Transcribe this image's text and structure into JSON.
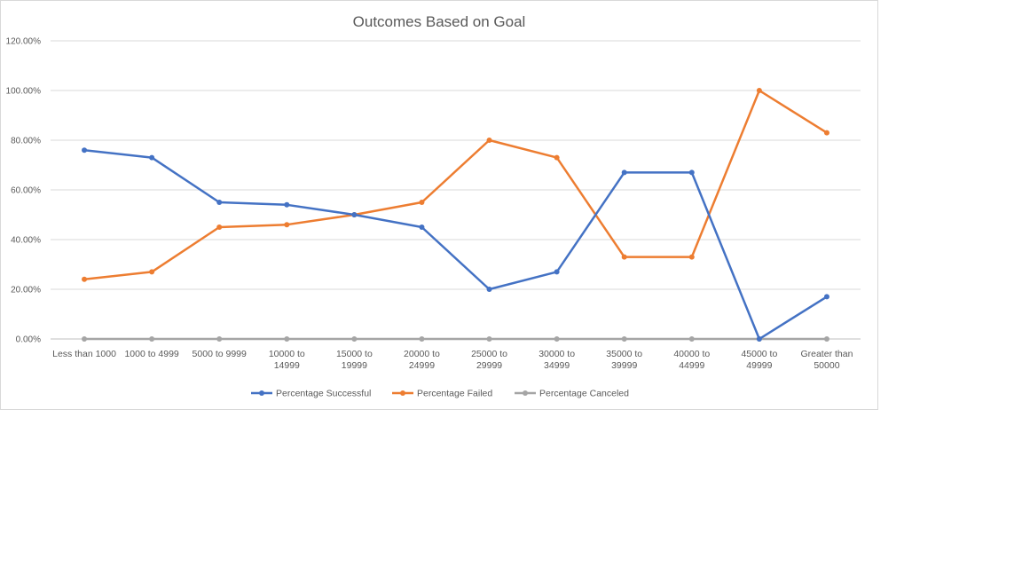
{
  "chart_data": {
    "type": "line",
    "title": "Outcomes Based on Goal",
    "xlabel": "",
    "ylabel": "",
    "ylim": [
      0,
      1.2
    ],
    "y_ticks": [
      0,
      0.2,
      0.4,
      0.6,
      0.8,
      1.0,
      1.2
    ],
    "y_tick_labels": [
      "0.00%",
      "20.00%",
      "40.00%",
      "60.00%",
      "80.00%",
      "100.00%",
      "120.00%"
    ],
    "grid": true,
    "legend_position": "bottom",
    "categories": [
      "Less than 1000",
      "1000 to 4999",
      "5000 to 9999",
      "10000 to 14999",
      "15000 to 19999",
      "20000 to 24999",
      "25000 to 29999",
      "30000 to 34999",
      "35000 to 39999",
      "40000 to 44999",
      "45000 to 49999",
      "Greater than 50000"
    ],
    "category_label_lines": [
      [
        "Less than 1000"
      ],
      [
        "1000 to 4999"
      ],
      [
        "5000 to 9999"
      ],
      [
        "10000 to",
        "14999"
      ],
      [
        "15000 to",
        "19999"
      ],
      [
        "20000 to",
        "24999"
      ],
      [
        "25000 to",
        "29999"
      ],
      [
        "30000 to",
        "34999"
      ],
      [
        "35000 to",
        "39999"
      ],
      [
        "40000 to",
        "44999"
      ],
      [
        "45000 to",
        "49999"
      ],
      [
        "Greater than",
        "50000"
      ]
    ],
    "series": [
      {
        "name": "Percentage Successful",
        "color": "#4472c4",
        "values": [
          0.76,
          0.73,
          0.55,
          0.54,
          0.5,
          0.45,
          0.2,
          0.27,
          0.67,
          0.67,
          0.0,
          0.17
        ]
      },
      {
        "name": "Percentage Failed",
        "color": "#ed7d31",
        "values": [
          0.24,
          0.27,
          0.45,
          0.46,
          0.5,
          0.55,
          0.8,
          0.73,
          0.33,
          0.33,
          1.0,
          0.83
        ]
      },
      {
        "name": "Percentage Canceled",
        "color": "#a5a5a5",
        "values": [
          0,
          0,
          0,
          0,
          0,
          0,
          0,
          0,
          0,
          0,
          0,
          0
        ]
      }
    ]
  }
}
